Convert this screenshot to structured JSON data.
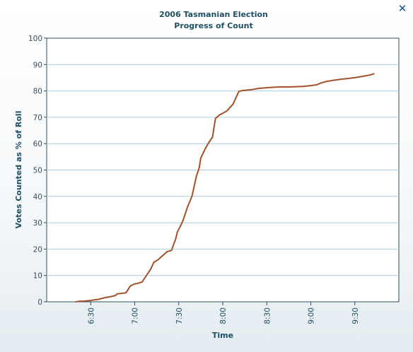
{
  "window": {
    "close_glyph": "✕",
    "close_icon": "close-icon"
  },
  "chart_data": {
    "type": "line",
    "title": "2006 Tasmanian Election",
    "subtitle": "Progress of Count",
    "xlabel": "Time",
    "ylabel": "Votes Counted as % of Roll",
    "ylim": [
      0,
      100
    ],
    "yticks": [
      0,
      10,
      20,
      30,
      40,
      50,
      60,
      70,
      80,
      90,
      100
    ],
    "xlim": [
      "6:00",
      "10:00"
    ],
    "xticks": [
      "6:30",
      "7:00",
      "7:30",
      "8:00",
      "8:30",
      "9:00",
      "9:30"
    ],
    "grid": true,
    "line_color": "#a0522d",
    "series": [
      {
        "x": [
          "6:20",
          "6:22",
          "6:26",
          "6:30",
          "6:32",
          "6:35",
          "6:37",
          "6:40",
          "6:44",
          "6:47",
          "6:48",
          "6:51",
          "6:54",
          "6:57",
          "7:00",
          "7:02",
          "7:05",
          "7:08",
          "7:11",
          "7:13",
          "7:16",
          "7:19",
          "7:22",
          "7:25",
          "7:28",
          "7:29",
          "7:31",
          "7:33",
          "7:36",
          "7:39",
          "7:42",
          "7:44",
          "7:45",
          "7:48",
          "7:50",
          "7:53",
          "7:55",
          "7:58",
          "8:00",
          "8:03",
          "8:07",
          "8:11",
          "8:13",
          "8:20",
          "8:25",
          "8:30",
          "8:35",
          "8:40",
          "8:45",
          "8:50",
          "8:55",
          "9:00",
          "9:04",
          "9:07",
          "9:10",
          "9:15",
          "9:20",
          "9:25",
          "9:30",
          "9:35",
          "9:40",
          "9:43"
        ],
        "y": [
          0,
          0.2,
          0.3,
          0.5,
          0.7,
          0.9,
          1.2,
          1.6,
          2.0,
          2.4,
          3.0,
          3.2,
          3.4,
          6.0,
          6.8,
          7.0,
          7.5,
          10,
          12.5,
          15,
          16,
          17.5,
          19,
          19.5,
          24,
          26.5,
          28.5,
          31,
          36,
          40,
          47.5,
          51,
          54.5,
          58,
          60,
          62.5,
          69.5,
          71,
          71.5,
          72.5,
          75,
          79.8,
          80.1,
          80.5,
          81,
          81.2,
          81.4,
          81.5,
          81.5,
          81.6,
          81.7,
          82,
          82.3,
          83,
          83.5,
          84,
          84.4,
          84.7,
          85,
          85.5,
          86,
          86.5
        ]
      }
    ]
  }
}
